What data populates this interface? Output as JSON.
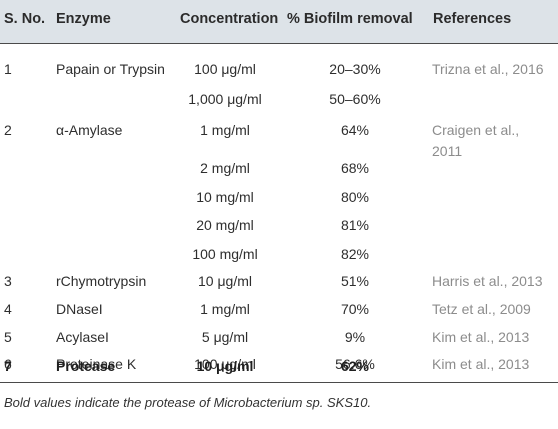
{
  "headers": [
    "S. No.",
    "Enzyme",
    "Concentration",
    "% Biofilm removal",
    "References"
  ],
  "rows": [
    {
      "sno": "1",
      "enzyme": "Papain or Trypsin",
      "conc": "100 μg/ml",
      "removal": "20–30%",
      "ref": "Trizna et al., 2016",
      "ref2": ""
    },
    {
      "sno": "",
      "enzyme": "",
      "conc": "1,000 μg/ml",
      "removal": "50–60%",
      "ref": "",
      "ref2": ""
    },
    {
      "sno": "2",
      "enzyme": "α-Amylase",
      "conc": "1 mg/ml",
      "removal": "64%",
      "ref": "Craigen et al.,",
      "ref2": "2011"
    },
    {
      "sno": "",
      "enzyme": "",
      "conc": "2 mg/ml",
      "removal": "68%",
      "ref": "",
      "ref2": ""
    },
    {
      "sno": "",
      "enzyme": "",
      "conc": "10 mg/ml",
      "removal": "80%",
      "ref": "",
      "ref2": ""
    },
    {
      "sno": "",
      "enzyme": "",
      "conc": "20 mg/ml",
      "removal": "81%",
      "ref": "",
      "ref2": ""
    },
    {
      "sno": "",
      "enzyme": "",
      "conc": "100 mg/ml",
      "removal": "82%",
      "ref": "",
      "ref2": ""
    },
    {
      "sno": "3",
      "enzyme": "rChymotrypsin",
      "conc": "10 μg/ml",
      "removal": "51%",
      "ref": "Harris et al., 2013",
      "ref2": ""
    },
    {
      "sno": "4",
      "enzyme": "DNaseI",
      "conc": "1 mg/ml",
      "removal": "70%",
      "ref": "Tetz et al., 2009",
      "ref2": ""
    },
    {
      "sno": "5",
      "enzyme": "AcylaseI",
      "conc": "5 μg/ml",
      "removal": "9%",
      "ref": "Kim et al., 2013",
      "ref2": ""
    },
    {
      "sno": "6",
      "enzyme": "Proteinase K",
      "conc": "100 μg/ml",
      "removal": "56.6%",
      "ref": "Kim et al., 2013",
      "ref2": ""
    },
    {
      "sno": "7",
      "enzyme": "Protease",
      "conc": "10 μg/ml",
      "removal": "62%",
      "ref": "",
      "ref2": ""
    }
  ],
  "footnote": "Bold values indicate the protease of Microbacterium sp. SKS10."
}
